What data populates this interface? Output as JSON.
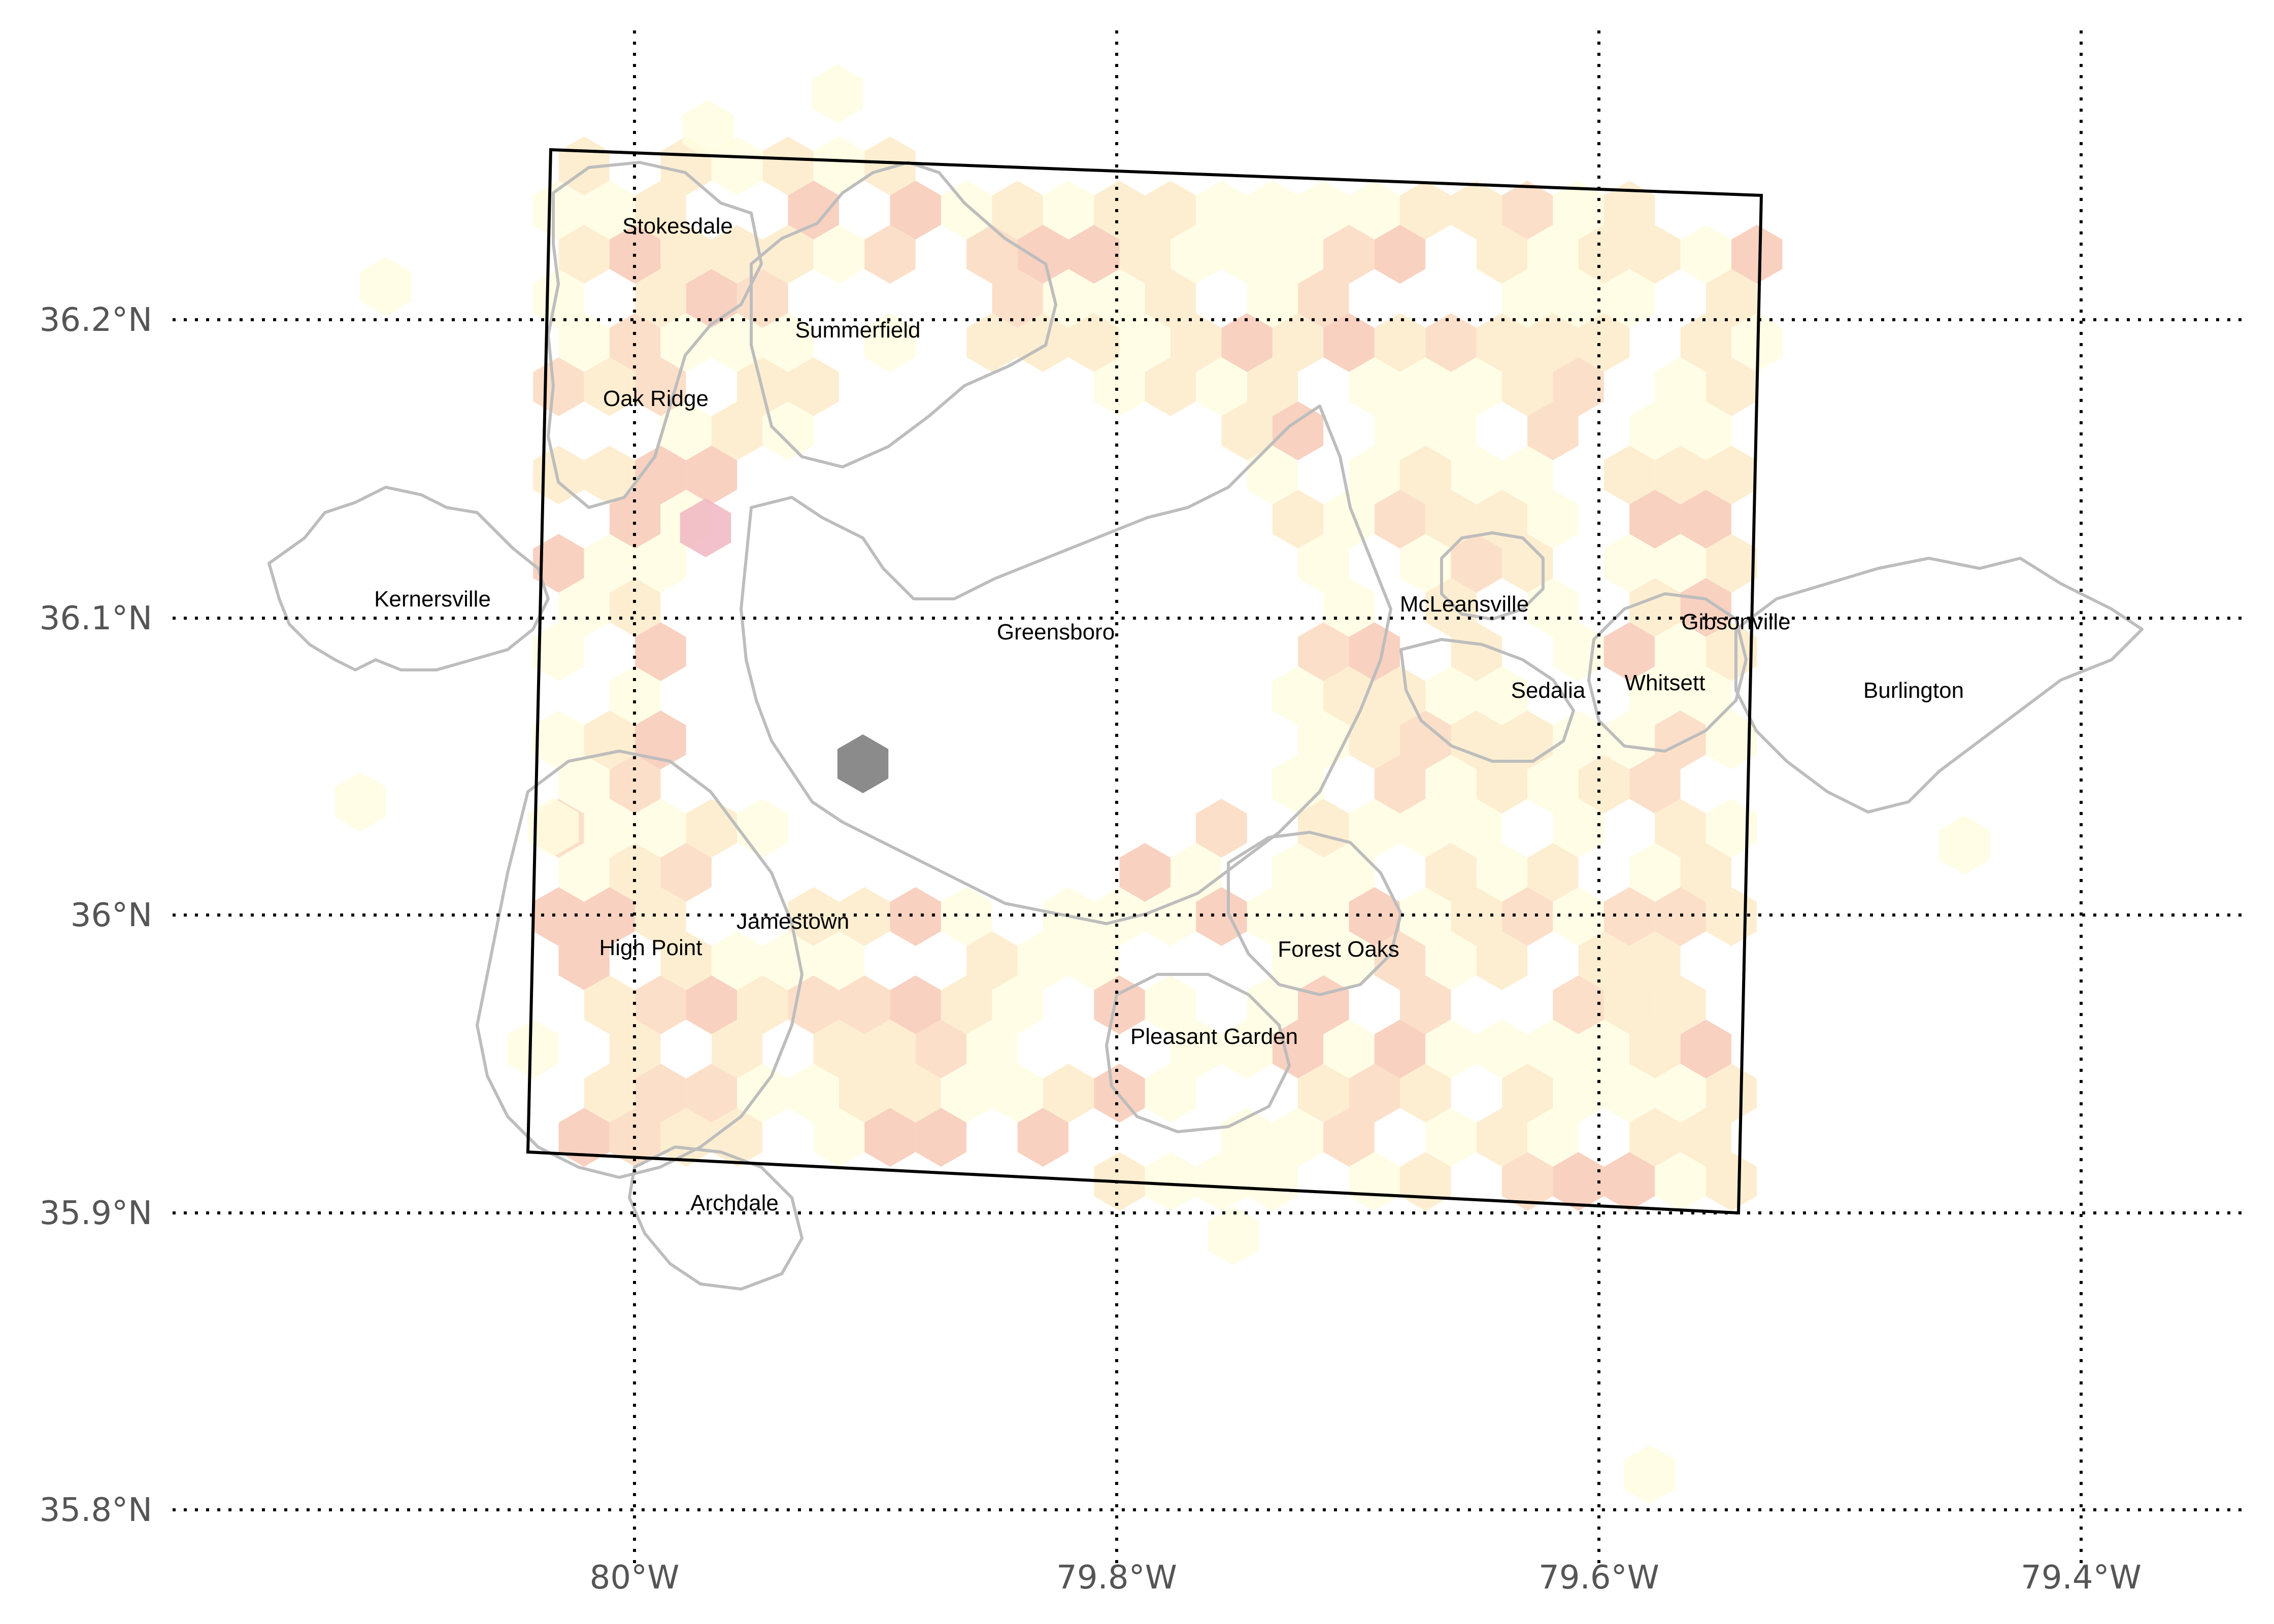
{
  "map": {
    "colors": {
      "hex_low": "#fffde0",
      "hex_mid": "#fdebc9",
      "hex_warm": "#fbd9bf",
      "hex_high": "#f8c9b5",
      "hex_pink": "#f0b6c2",
      "hex_dark": "#777777",
      "boundary": "#bdbdbd",
      "county": "#000000",
      "grid": "#000000"
    },
    "lon_ticks": [
      "80°W",
      "79.8°W",
      "79.6°W",
      "79.4°W"
    ],
    "lat_ticks": [
      "36.2°N",
      "36.1°N",
      "36°N",
      "35.9°N",
      "35.8°N"
    ],
    "places": [
      "Stokesdale",
      "Summerfield",
      "Oak Ridge",
      "Kernersville",
      "Greensboro",
      "McLeansville",
      "Gibsonville",
      "Sedalia",
      "Whitsett",
      "Burlington",
      "Jamestown",
      "High Point",
      "Forest Oaks",
      "Pleasant Garden",
      "Archdale"
    ]
  }
}
